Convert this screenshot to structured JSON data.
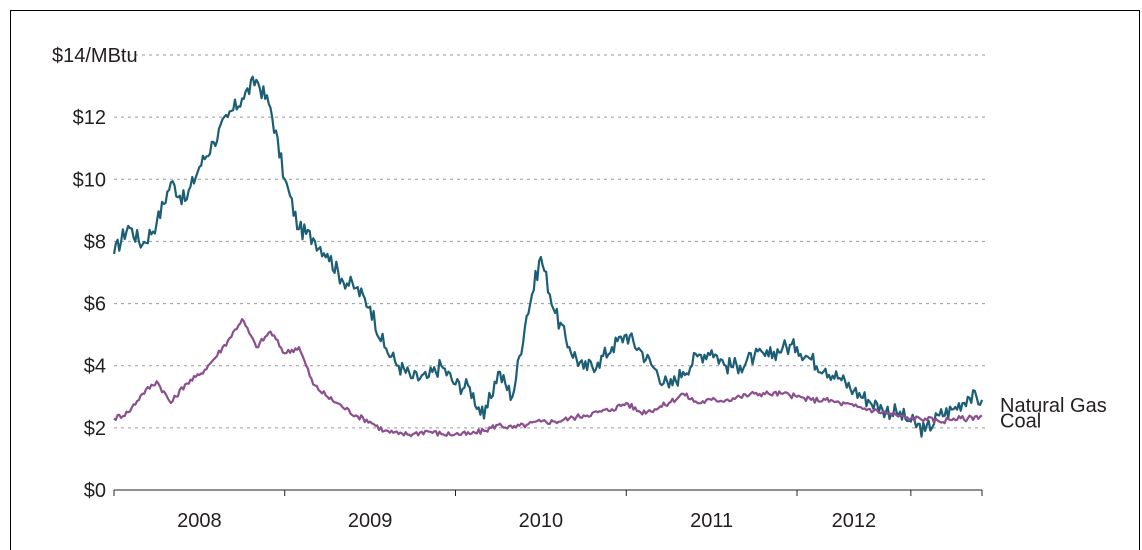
{
  "chart_data": {
    "type": "line",
    "title": "",
    "xlabel": "",
    "ylabel": "",
    "y_unit_label": "$14/MBtu",
    "ylim": [
      0,
      14
    ],
    "y_ticks": [
      {
        "value": 0,
        "label": "$0"
      },
      {
        "value": 2,
        "label": "$2"
      },
      {
        "value": 4,
        "label": "$4"
      },
      {
        "value": 6,
        "label": "$6"
      },
      {
        "value": 8,
        "label": "$8"
      },
      {
        "value": 10,
        "label": "$10"
      },
      {
        "value": 12,
        "label": "$12"
      },
      {
        "value": 14,
        "label": "$14/MBtu"
      }
    ],
    "xlim": [
      "2007-07",
      "2012-08"
    ],
    "x_ticks": [
      "2007-07",
      "2008-07",
      "2009-07",
      "2010-07",
      "2011-07",
      "2012-03",
      "2012-08"
    ],
    "x_category_labels": [
      {
        "label": "2008",
        "at": "2008-01"
      },
      {
        "label": "2009",
        "at": "2009-01"
      },
      {
        "label": "2010",
        "at": "2010-01"
      },
      {
        "label": "2011",
        "at": "2011-01"
      },
      {
        "label": "2012",
        "at": "2011-11"
      }
    ],
    "grid": "horizontal dashed",
    "legend": "labels at right end of lines",
    "series": [
      {
        "name": "Natural Gas",
        "color": "#1b5e76",
        "points": [
          [
            "2007-07",
            7.6
          ],
          [
            "2007-08",
            8.5
          ],
          [
            "2007-09",
            7.9
          ],
          [
            "2007-10",
            8.6
          ],
          [
            "2007-11",
            9.9
          ],
          [
            "2007-12",
            9.3
          ],
          [
            "2008-01",
            10.4
          ],
          [
            "2008-02",
            11.2
          ],
          [
            "2008-03",
            12.0
          ],
          [
            "2008-04",
            12.6
          ],
          [
            "2008-05",
            13.2
          ],
          [
            "2008-06",
            12.3
          ],
          [
            "2008-07",
            10.0
          ],
          [
            "2008-08",
            8.4
          ],
          [
            "2008-09",
            8.1
          ],
          [
            "2008-10",
            7.6
          ],
          [
            "2008-11",
            6.8
          ],
          [
            "2008-12",
            6.5
          ],
          [
            "2009-01",
            5.9
          ],
          [
            "2009-02",
            4.6
          ],
          [
            "2009-03",
            4.0
          ],
          [
            "2009-04",
            3.6
          ],
          [
            "2009-05",
            3.6
          ],
          [
            "2009-06",
            4.0
          ],
          [
            "2009-07",
            3.4
          ],
          [
            "2009-08",
            3.3
          ],
          [
            "2009-09",
            2.3
          ],
          [
            "2009-10",
            3.8
          ],
          [
            "2009-11",
            3.0
          ],
          [
            "2009-12",
            5.6
          ],
          [
            "2010-01",
            7.5
          ],
          [
            "2010-02",
            5.7
          ],
          [
            "2010-03",
            4.6
          ],
          [
            "2010-04",
            3.9
          ],
          [
            "2010-05",
            4.1
          ],
          [
            "2010-06",
            4.6
          ],
          [
            "2010-07",
            5.0
          ],
          [
            "2010-08",
            4.5
          ],
          [
            "2010-09",
            3.9
          ],
          [
            "2010-10",
            3.3
          ],
          [
            "2010-11",
            3.8
          ],
          [
            "2010-12",
            4.3
          ],
          [
            "2011-01",
            4.5
          ],
          [
            "2011-02",
            4.0
          ],
          [
            "2011-03",
            4.0
          ],
          [
            "2011-04",
            4.3
          ],
          [
            "2011-05",
            4.3
          ],
          [
            "2011-06",
            4.6
          ],
          [
            "2011-07",
            4.6
          ],
          [
            "2011-08",
            4.2
          ],
          [
            "2011-09",
            3.9
          ],
          [
            "2011-10",
            3.6
          ],
          [
            "2011-11",
            3.2
          ],
          [
            "2011-12",
            2.9
          ],
          [
            "2012-01",
            2.6
          ],
          [
            "2012-02",
            2.5
          ],
          [
            "2012-03",
            2.2
          ],
          [
            "2012-04",
            1.9
          ],
          [
            "2012-05",
            2.4
          ],
          [
            "2012-06",
            2.6
          ],
          [
            "2012-07",
            3.0
          ],
          [
            "2012-08",
            2.9
          ]
        ]
      },
      {
        "name": "Coal",
        "color": "#8b4f8f",
        "points": [
          [
            "2007-07",
            2.3
          ],
          [
            "2007-08",
            2.5
          ],
          [
            "2007-09",
            3.1
          ],
          [
            "2007-10",
            3.5
          ],
          [
            "2007-11",
            2.8
          ],
          [
            "2007-12",
            3.4
          ],
          [
            "2008-01",
            3.7
          ],
          [
            "2008-02",
            4.2
          ],
          [
            "2008-03",
            4.8
          ],
          [
            "2008-04",
            5.5
          ],
          [
            "2008-05",
            4.6
          ],
          [
            "2008-06",
            5.1
          ],
          [
            "2008-07",
            4.4
          ],
          [
            "2008-08",
            4.6
          ],
          [
            "2008-09",
            3.4
          ],
          [
            "2008-10",
            3.0
          ],
          [
            "2008-11",
            2.7
          ],
          [
            "2008-12",
            2.4
          ],
          [
            "2009-01",
            2.2
          ],
          [
            "2009-02",
            1.9
          ],
          [
            "2009-03",
            1.8
          ],
          [
            "2009-04",
            1.8
          ],
          [
            "2009-05",
            1.9
          ],
          [
            "2009-06",
            1.8
          ],
          [
            "2009-07",
            1.8
          ],
          [
            "2009-08",
            1.8
          ],
          [
            "2009-09",
            1.9
          ],
          [
            "2009-10",
            2.1
          ],
          [
            "2009-11",
            2.0
          ],
          [
            "2009-12",
            2.1
          ],
          [
            "2010-01",
            2.2
          ],
          [
            "2010-02",
            2.2
          ],
          [
            "2010-03",
            2.3
          ],
          [
            "2010-04",
            2.4
          ],
          [
            "2010-05",
            2.5
          ],
          [
            "2010-06",
            2.6
          ],
          [
            "2010-07",
            2.8
          ],
          [
            "2010-08",
            2.5
          ],
          [
            "2010-09",
            2.6
          ],
          [
            "2010-10",
            2.8
          ],
          [
            "2010-11",
            3.1
          ],
          [
            "2010-12",
            2.8
          ],
          [
            "2011-01",
            2.9
          ],
          [
            "2011-02",
            2.9
          ],
          [
            "2011-03",
            3.0
          ],
          [
            "2011-04",
            3.1
          ],
          [
            "2011-05",
            3.1
          ],
          [
            "2011-06",
            3.1
          ],
          [
            "2011-07",
            3.0
          ],
          [
            "2011-08",
            2.9
          ],
          [
            "2011-09",
            2.9
          ],
          [
            "2011-10",
            2.8
          ],
          [
            "2011-11",
            2.7
          ],
          [
            "2011-12",
            2.6
          ],
          [
            "2012-01",
            2.5
          ],
          [
            "2012-02",
            2.4
          ],
          [
            "2012-03",
            2.3
          ],
          [
            "2012-04",
            2.3
          ],
          [
            "2012-05",
            2.2
          ],
          [
            "2012-06",
            2.3
          ],
          [
            "2012-07",
            2.3
          ],
          [
            "2012-08",
            2.4
          ]
        ]
      }
    ]
  }
}
